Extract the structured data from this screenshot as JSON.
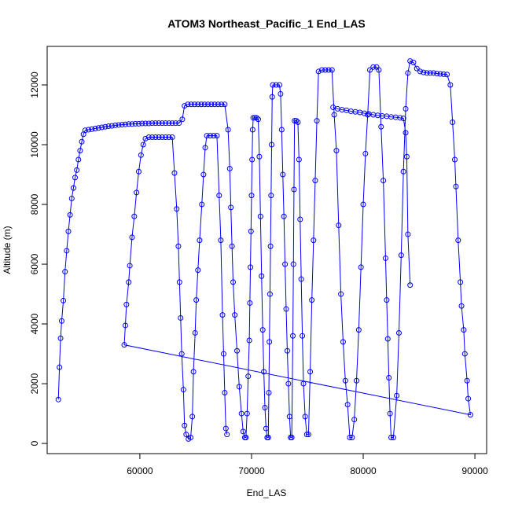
{
  "chart_data": {
    "type": "line",
    "title": "ATOM3 Northeast_Pacific_1 End_LAS",
    "xlabel": "End_LAS",
    "ylabel": "Altitude (m)",
    "color": "#0000ff",
    "marker": "circle",
    "xlim": [
      51700,
      91050
    ],
    "ylim": [
      -340,
      13290
    ],
    "xticks": [
      60000,
      70000,
      80000,
      90000
    ],
    "yticks": [
      0,
      2000,
      4000,
      6000,
      8000,
      10000,
      12000
    ],
    "x": [
      52700,
      52800,
      52900,
      53000,
      53150,
      53300,
      53450,
      53600,
      53750,
      53900,
      54050,
      54200,
      54350,
      54500,
      54650,
      54800,
      54950,
      55100,
      55400,
      55700,
      56000,
      56300,
      56600,
      56900,
      57200,
      57500,
      57800,
      58100,
      58400,
      58700,
      59000,
      59300,
      59600,
      59900,
      60200,
      60500,
      60800,
      61100,
      61400,
      61700,
      62000,
      62300,
      62600,
      62900,
      63200,
      63500,
      63800,
      64000,
      64300,
      64600,
      64900,
      65200,
      65500,
      65800,
      66100,
      66400,
      66700,
      67000,
      67300,
      67600,
      67900,
      68050,
      68150,
      68250,
      68350,
      68500,
      68700,
      68900,
      69100,
      69250,
      69400,
      69500,
      69600,
      69700,
      69800,
      69850,
      69900,
      69950,
      70000,
      70050,
      70100,
      70150,
      70300,
      70450,
      70600,
      70700,
      70800,
      70900,
      71000,
      71100,
      71200,
      71300,
      71400,
      71500,
      71550,
      71600,
      71650,
      71700,
      71750,
      71800,
      71850,
      71900,
      72200,
      72500,
      72600,
      72700,
      72800,
      72900,
      73000,
      73100,
      73200,
      73300,
      73400,
      73500,
      73600,
      73700,
      73750,
      73800,
      73850,
      74000,
      74150,
      74250,
      74350,
      74450,
      74550,
      74650,
      74800,
      74950,
      75100,
      75250,
      75400,
      75550,
      75700,
      75850,
      76000,
      76300,
      76600,
      76900,
      77200,
      77400,
      77600,
      77800,
      78000,
      78200,
      78400,
      78600,
      78800,
      79000,
      79200,
      79400,
      79600,
      79800,
      80000,
      80200,
      80400,
      80600,
      80900,
      81200,
      81400,
      81600,
      81800,
      82000,
      82100,
      82200,
      82300,
      82400,
      82500,
      82700,
      83000,
      83200,
      83400,
      83600,
      83800,
      84000,
      84200,
      84500,
      84800,
      85100,
      85400,
      85700,
      86000,
      86300,
      86600,
      86900,
      87200,
      87500,
      87800,
      88000,
      88200,
      88300,
      88500,
      88700,
      88800,
      89000,
      89100,
      89300,
      89400,
      89600,
      58600,
      58700,
      58800,
      59000,
      59100,
      59300,
      59500,
      59700,
      59900,
      60100,
      60300,
      60500,
      60800,
      61100,
      61400,
      61700,
      62000,
      62300,
      62600,
      62900,
      63100,
      63300,
      63450,
      63550,
      63650,
      63750,
      63900,
      64000,
      64150,
      64350,
      64550,
      64700,
      64800,
      64950,
      65050,
      65200,
      65350,
      65550,
      65700,
      65850,
      66000,
      66300,
      66600,
      66900,
      67100,
      67250,
      67400,
      67500,
      67600,
      67700,
      67800,
      null,
      77300,
      77700,
      78100,
      78500,
      78900,
      79300,
      79700,
      80100,
      80500,
      80900,
      81300,
      81700,
      82100,
      82500,
      82900,
      83300,
      83600,
      83800,
      83900,
      84000,
      84200
    ],
    "y": [
      1470,
      2550,
      3520,
      4100,
      4780,
      5750,
      6450,
      7100,
      7650,
      8200,
      8550,
      8900,
      9150,
      9500,
      9800,
      10100,
      10350,
      10480,
      10500,
      10520,
      10540,
      10560,
      10580,
      10600,
      10620,
      10630,
      10650,
      10660,
      10670,
      10680,
      10690,
      10690,
      10700,
      10700,
      10710,
      10710,
      10710,
      10720,
      10720,
      10720,
      10720,
      10720,
      10720,
      10720,
      10720,
      10720,
      10850,
      11300,
      11350,
      11350,
      11350,
      11350,
      11350,
      11350,
      11350,
      11350,
      11350,
      11350,
      11350,
      11350,
      10500,
      9200,
      7900,
      6600,
      5400,
      4300,
      3100,
      1900,
      1000,
      400,
      200,
      200,
      1000,
      2250,
      3450,
      4700,
      5900,
      7100,
      8300,
      9500,
      10500,
      10900,
      10900,
      10900,
      10850,
      9600,
      7600,
      5600,
      3800,
      2400,
      1200,
      500,
      200,
      200,
      1700,
      3400,
      5000,
      6600,
      8300,
      10000,
      11600,
      12000,
      12000,
      12000,
      11700,
      10500,
      9000,
      7600,
      6000,
      4500,
      3100,
      2000,
      900,
      200,
      200,
      3600,
      6000,
      8500,
      10800,
      10800,
      10750,
      9500,
      7500,
      5500,
      3600,
      2000,
      900,
      300,
      300,
      2400,
      4800,
      6800,
      8800,
      10800,
      12450,
      12500,
      12500,
      12500,
      12500,
      11000,
      9800,
      7300,
      5000,
      3400,
      2100,
      1300,
      200,
      200,
      800,
      2100,
      3800,
      5900,
      8000,
      9700,
      11000,
      12500,
      12600,
      12600,
      12500,
      10600,
      8800,
      6200,
      4800,
      3500,
      2200,
      1000,
      200,
      200,
      1600,
      3700,
      6300,
      9100,
      11200,
      12400,
      12800,
      12750,
      12550,
      12450,
      12420,
      12400,
      12400,
      12400,
      12380,
      12370,
      12360,
      12350,
      12000,
      10750,
      9500,
      8600,
      6800,
      5400,
      4600,
      3800,
      3000,
      2100,
      1500,
      960,
      3300,
      3950,
      4650,
      5400,
      5950,
      6900,
      7600,
      8400,
      9100,
      9650,
      10000,
      10200,
      10250,
      10250,
      10250,
      10250,
      10250,
      10250,
      10250,
      10250,
      9050,
      7850,
      6600,
      5400,
      4200,
      3000,
      1800,
      600,
      300,
      150,
      200,
      900,
      2400,
      3700,
      4800,
      5800,
      6800,
      8000,
      9000,
      9900,
      10300,
      10300,
      10300,
      10300,
      8300,
      6800,
      4300,
      3000,
      1700,
      500,
      300,
      null,
      11250,
      11200,
      11170,
      11150,
      11120,
      11100,
      11080,
      11050,
      11030,
      11000,
      10980,
      10960,
      10950,
      10930,
      10920,
      10900,
      10880,
      10400,
      9600,
      7000,
      5300
    ]
  }
}
